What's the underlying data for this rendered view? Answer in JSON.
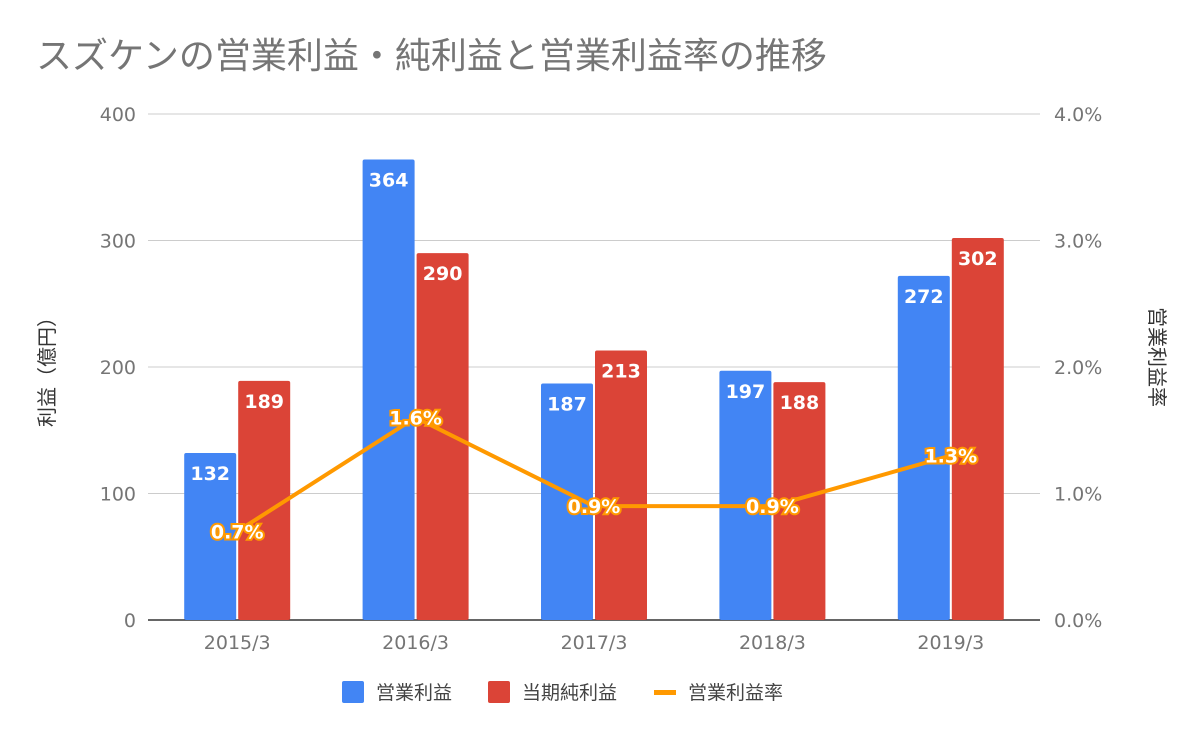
{
  "chart_data": {
    "type": "bar",
    "title": "スズケンの営業利益・純利益と営業利益率の推移",
    "categories": [
      "2015/3",
      "2016/3",
      "2017/3",
      "2018/3",
      "2019/3"
    ],
    "series": [
      {
        "name": "営業利益",
        "type": "bar",
        "axis": "left",
        "color": "#4285f4",
        "values": [
          132,
          364,
          187,
          197,
          272
        ]
      },
      {
        "name": "当期純利益",
        "type": "bar",
        "axis": "left",
        "color": "#db4437",
        "values": [
          189,
          290,
          213,
          188,
          302
        ]
      },
      {
        "name": "営業利益率",
        "type": "line",
        "axis": "right",
        "color": "#ff9900",
        "values": [
          0.7,
          1.6,
          0.9,
          0.9,
          1.3
        ],
        "labels": [
          "0.7%",
          "1.6%",
          "0.9%",
          "0.9%",
          "1.3%"
        ]
      }
    ],
    "ylabel": "利益（億円）",
    "y2label": "営業利益率",
    "ylim": [
      0,
      400
    ],
    "y2lim": [
      0,
      4
    ],
    "yticks": [
      "0",
      "100",
      "200",
      "300",
      "400"
    ],
    "y2ticks": [
      "0.0%",
      "1.0%",
      "2.0%",
      "3.0%",
      "4.0%"
    ],
    "grid": true,
    "legend": "bottom"
  }
}
